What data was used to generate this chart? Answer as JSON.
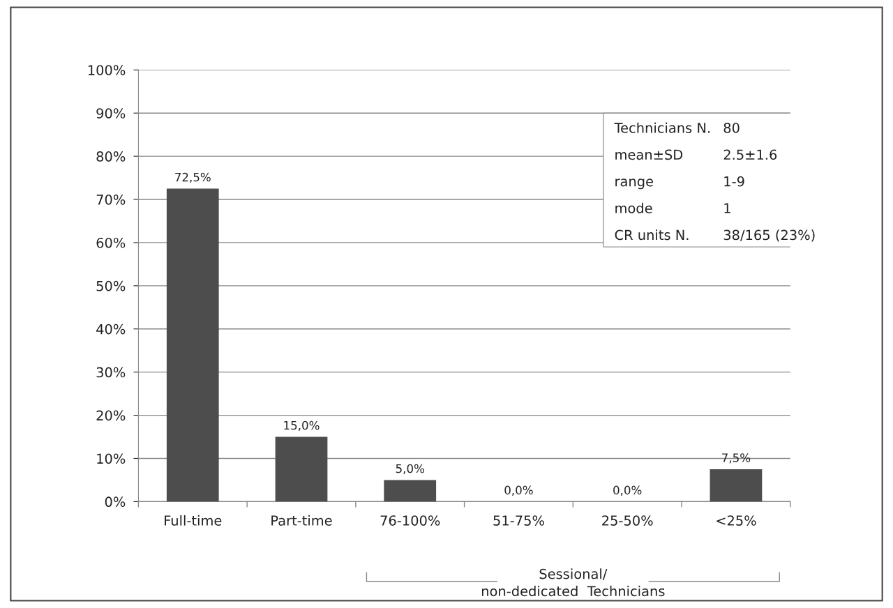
{
  "chart_data": {
    "type": "bar",
    "categories": [
      "Full-time",
      "Part-time",
      "76-100%",
      "51-75%",
      "25-50%",
      "<25%"
    ],
    "values": [
      72.5,
      15.0,
      5.0,
      0.0,
      0.0,
      7.5
    ],
    "value_labels": [
      "72,5%",
      "15,0%",
      "5,0%",
      "0,0%",
      "0,0%",
      "7,5%"
    ],
    "color": "#4d4d4d",
    "ylim": [
      0,
      100
    ],
    "yticks": [
      {
        "value": 0,
        "label": "0%"
      },
      {
        "value": 10,
        "label": "10%"
      },
      {
        "value": 20,
        "label": "20%"
      },
      {
        "value": 30,
        "label": "30%"
      },
      {
        "value": 40,
        "label": "40%"
      },
      {
        "value": 50,
        "label": "50%"
      },
      {
        "value": 60,
        "label": "60%"
      },
      {
        "value": 70,
        "label": "70%"
      },
      {
        "value": 80,
        "label": "80%"
      },
      {
        "value": 90,
        "label": "90%"
      },
      {
        "value": 100,
        "label": "100%"
      }
    ],
    "grid": "y",
    "legend": false,
    "annotations": [
      "Technicians N.",
      "80",
      "mean±SD",
      "2.5±1.6",
      "range",
      "1-9",
      "mode",
      "1",
      "CR units N.",
      "38/165 (23%)",
      "Sessional/\nnon-dedicated  Technicians"
    ]
  }
}
